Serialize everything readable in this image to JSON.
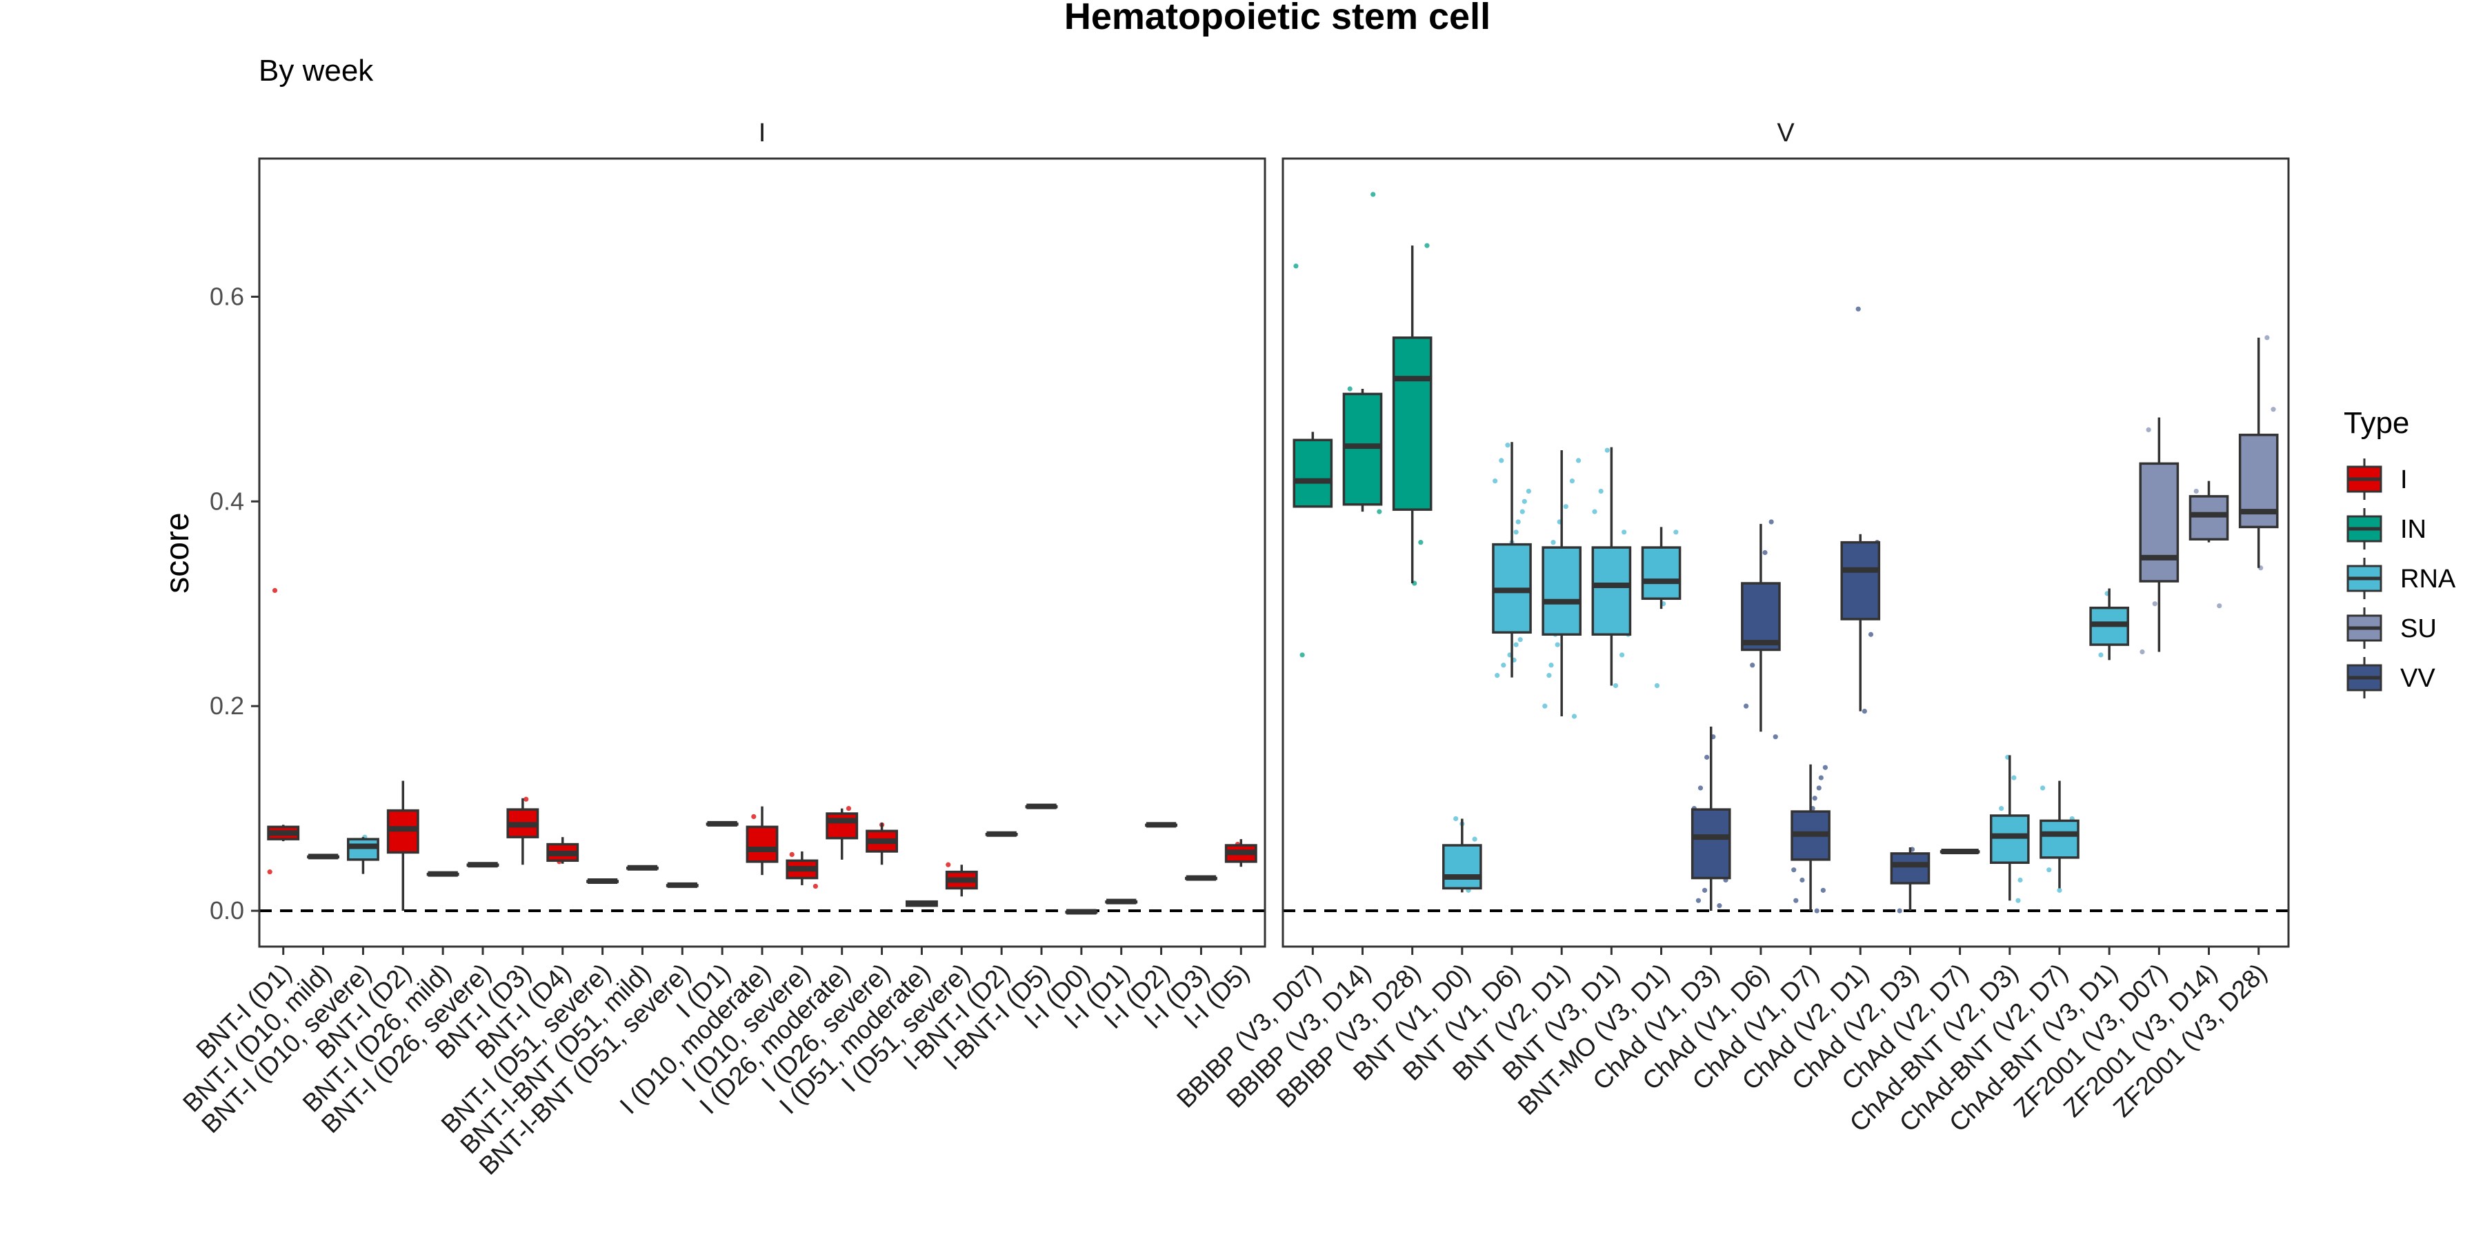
{
  "chart_data": {
    "type": "boxplot",
    "title": "Hematopoietic stem cell",
    "subtitle": "By week",
    "ylabel": "score",
    "xlabel": "",
    "ylim": [
      -0.035,
      0.735
    ],
    "yticks": [
      0.0,
      0.2,
      0.4,
      0.6
    ],
    "reference_line": 0.0,
    "legend": {
      "title": "Type",
      "position": "right",
      "items": [
        {
          "name": "I",
          "color": "#dc0000"
        },
        {
          "name": "IN",
          "color": "#00a087"
        },
        {
          "name": "RNA",
          "color": "#4dbbd5"
        },
        {
          "name": "SU",
          "color": "#8491b4"
        },
        {
          "name": "VV",
          "color": "#3c5488"
        }
      ]
    },
    "panels": [
      {
        "label": "I",
        "groups": [
          {
            "label": "BNT-I (D1)",
            "type": "I",
            "q1": 0.07,
            "median": 0.076,
            "q3": 0.082,
            "lo": 0.068,
            "hi": 0.084,
            "points": [
              0.038,
              0.313
            ]
          },
          {
            "label": "BNT-I (D10, mild)",
            "type": "I",
            "q1": 0.053,
            "median": 0.053,
            "q3": 0.053,
            "lo": 0.053,
            "hi": 0.053,
            "points": []
          },
          {
            "label": "BNT-I (D10, severe)",
            "type": "RNA",
            "q1": 0.05,
            "median": 0.063,
            "q3": 0.07,
            "lo": 0.036,
            "hi": 0.072,
            "points": [
              0.072
            ]
          },
          {
            "label": "BNT-I (D2)",
            "type": "I",
            "q1": 0.057,
            "median": 0.08,
            "q3": 0.098,
            "lo": 0.0,
            "hi": 0.127,
            "points": []
          },
          {
            "label": "BNT-I (D26, mild)",
            "type": "I",
            "q1": 0.036,
            "median": 0.036,
            "q3": 0.036,
            "lo": 0.036,
            "hi": 0.036,
            "points": []
          },
          {
            "label": "BNT-I (D26, severe)",
            "type": "I",
            "q1": 0.045,
            "median": 0.045,
            "q3": 0.045,
            "lo": 0.045,
            "hi": 0.045,
            "points": []
          },
          {
            "label": "BNT-I (D3)",
            "type": "I",
            "q1": 0.072,
            "median": 0.084,
            "q3": 0.099,
            "lo": 0.045,
            "hi": 0.11,
            "points": [
              0.109
            ]
          },
          {
            "label": "BNT-I (D4)",
            "type": "I",
            "q1": 0.049,
            "median": 0.056,
            "q3": 0.065,
            "lo": 0.046,
            "hi": 0.072,
            "points": [
              0.048
            ]
          },
          {
            "label": "BNT-I (D51, severe)",
            "type": "I",
            "q1": 0.029,
            "median": 0.029,
            "q3": 0.029,
            "lo": 0.029,
            "hi": 0.029,
            "points": []
          },
          {
            "label": "BNT-I-BNT (D51, mild)",
            "type": "I",
            "q1": 0.042,
            "median": 0.042,
            "q3": 0.042,
            "lo": 0.042,
            "hi": 0.042,
            "points": []
          },
          {
            "label": "BNT-I-BNT (D51, severe)",
            "type": "I",
            "q1": 0.025,
            "median": 0.025,
            "q3": 0.025,
            "lo": 0.025,
            "hi": 0.025,
            "points": []
          },
          {
            "label": "I (D1)",
            "type": "I",
            "q1": 0.085,
            "median": 0.085,
            "q3": 0.085,
            "lo": 0.085,
            "hi": 0.085,
            "points": []
          },
          {
            "label": "I (D10, moderate)",
            "type": "I",
            "q1": 0.048,
            "median": 0.06,
            "q3": 0.082,
            "lo": 0.035,
            "hi": 0.102,
            "points": [
              0.092
            ]
          },
          {
            "label": "I (D10, severe)",
            "type": "I",
            "q1": 0.032,
            "median": 0.041,
            "q3": 0.049,
            "lo": 0.025,
            "hi": 0.058,
            "points": [
              0.024,
              0.055
            ]
          },
          {
            "label": "I (D26, moderate)",
            "type": "I",
            "q1": 0.071,
            "median": 0.088,
            "q3": 0.095,
            "lo": 0.05,
            "hi": 0.1,
            "points": [
              0.1
            ]
          },
          {
            "label": "I (D26, severe)",
            "type": "I",
            "q1": 0.058,
            "median": 0.068,
            "q3": 0.078,
            "lo": 0.045,
            "hi": 0.086,
            "points": [
              0.084
            ]
          },
          {
            "label": "I (D51, moderate)",
            "type": "I",
            "q1": 0.005,
            "median": 0.007,
            "q3": 0.009,
            "lo": 0.004,
            "hi": 0.01,
            "points": []
          },
          {
            "label": "I (D51, severe)",
            "type": "I",
            "q1": 0.022,
            "median": 0.03,
            "q3": 0.038,
            "lo": 0.014,
            "hi": 0.045,
            "points": [
              0.045
            ]
          },
          {
            "label": "I-BNT-I (D2)",
            "type": "I",
            "q1": 0.075,
            "median": 0.075,
            "q3": 0.075,
            "lo": 0.075,
            "hi": 0.075,
            "points": []
          },
          {
            "label": "I-BNT-I (D5)",
            "type": "I",
            "q1": 0.102,
            "median": 0.102,
            "q3": 0.102,
            "lo": 0.102,
            "hi": 0.102,
            "points": []
          },
          {
            "label": "I-I (D0)",
            "type": "I",
            "q1": -0.001,
            "median": -0.001,
            "q3": -0.001,
            "lo": -0.001,
            "hi": -0.001,
            "points": []
          },
          {
            "label": "I-I (D1)",
            "type": "I",
            "q1": 0.009,
            "median": 0.009,
            "q3": 0.009,
            "lo": 0.009,
            "hi": 0.009,
            "points": []
          },
          {
            "label": "I-I (D2)",
            "type": "I",
            "q1": 0.084,
            "median": 0.084,
            "q3": 0.084,
            "lo": 0.084,
            "hi": 0.084,
            "points": []
          },
          {
            "label": "I-I (D3)",
            "type": "I",
            "q1": 0.032,
            "median": 0.032,
            "q3": 0.032,
            "lo": 0.032,
            "hi": 0.032,
            "points": []
          },
          {
            "label": "I-I (D5)",
            "type": "I",
            "q1": 0.048,
            "median": 0.057,
            "q3": 0.064,
            "lo": 0.043,
            "hi": 0.07,
            "points": [
              0.065
            ]
          }
        ]
      },
      {
        "label": "V",
        "groups": [
          {
            "label": "BBIBP (V3, D07)",
            "type": "IN",
            "q1": 0.395,
            "median": 0.42,
            "q3": 0.46,
            "lo": 0.395,
            "hi": 0.468,
            "points": [
              0.63,
              0.25,
              0.4,
              0.43,
              0.455
            ]
          },
          {
            "label": "BBIBP (V3, D14)",
            "type": "IN",
            "q1": 0.397,
            "median": 0.454,
            "q3": 0.505,
            "lo": 0.39,
            "hi": 0.51,
            "points": [
              0.7,
              0.39,
              0.51,
              0.47
            ]
          },
          {
            "label": "BBIBP (V3, D28)",
            "type": "IN",
            "q1": 0.392,
            "median": 0.52,
            "q3": 0.56,
            "lo": 0.32,
            "hi": 0.65,
            "points": [
              0.32,
              0.36,
              0.65,
              0.55
            ]
          },
          {
            "label": "BNT (V1, D0)",
            "type": "RNA",
            "q1": 0.022,
            "median": 0.033,
            "q3": 0.064,
            "lo": 0.018,
            "hi": 0.09,
            "points": [
              0.09,
              0.085,
              0.02,
              0.07,
              0.04
            ]
          },
          {
            "label": "BNT (V1, D6)",
            "type": "RNA",
            "q1": 0.272,
            "median": 0.313,
            "q3": 0.358,
            "lo": 0.228,
            "hi": 0.458,
            "points": [
              0.23,
              0.24,
              0.25,
              0.26,
              0.28,
              0.3,
              0.32,
              0.34,
              0.36,
              0.38,
              0.4,
              0.42,
              0.44,
              0.455,
              0.245,
              0.265,
              0.29,
              0.31,
              0.33,
              0.35,
              0.37,
              0.39,
              0.41
            ]
          },
          {
            "label": "BNT (V2, D1)",
            "type": "RNA",
            "q1": 0.27,
            "median": 0.302,
            "q3": 0.355,
            "lo": 0.19,
            "hi": 0.45,
            "points": [
              0.19,
              0.2,
              0.24,
              0.26,
              0.28,
              0.3,
              0.32,
              0.34,
              0.36,
              0.38,
              0.395,
              0.42,
              0.44,
              0.23,
              0.27,
              0.31
            ]
          },
          {
            "label": "BNT (V3, D1)",
            "type": "RNA",
            "q1": 0.27,
            "median": 0.318,
            "q3": 0.355,
            "lo": 0.22,
            "hi": 0.453,
            "points": [
              0.22,
              0.25,
              0.27,
              0.29,
              0.31,
              0.33,
              0.35,
              0.37,
              0.39,
              0.41,
              0.45,
              0.3,
              0.34
            ]
          },
          {
            "label": "BNT-MO (V3, D1)",
            "type": "RNA",
            "q1": 0.305,
            "median": 0.322,
            "q3": 0.355,
            "lo": 0.295,
            "hi": 0.375,
            "points": [
              0.22,
              0.3,
              0.33,
              0.37
            ]
          },
          {
            "label": "ChAd (V1, D3)",
            "type": "VV",
            "q1": 0.032,
            "median": 0.072,
            "q3": 0.099,
            "lo": 0.0,
            "hi": 0.18,
            "points": [
              0.01,
              0.02,
              0.04,
              0.06,
              0.08,
              0.1,
              0.12,
              0.15,
              0.17,
              0.005,
              0.03,
              0.05,
              0.09
            ]
          },
          {
            "label": "ChAd (V1, D6)",
            "type": "VV",
            "q1": 0.255,
            "median": 0.262,
            "q3": 0.32,
            "lo": 0.175,
            "hi": 0.378,
            "points": [
              0.17,
              0.2,
              0.24,
              0.28,
              0.35,
              0.38,
              0.3
            ]
          },
          {
            "label": "ChAd (V1, D7)",
            "type": "VV",
            "q1": 0.05,
            "median": 0.075,
            "q3": 0.097,
            "lo": 0.0,
            "hi": 0.143,
            "points": [
              0.0,
              0.02,
              0.04,
              0.06,
              0.08,
              0.1,
              0.12,
              0.14,
              0.01,
              0.03,
              0.07,
              0.11,
              0.13
            ]
          },
          {
            "label": "ChAd (V2, D1)",
            "type": "VV",
            "q1": 0.285,
            "median": 0.333,
            "q3": 0.36,
            "lo": 0.195,
            "hi": 0.368,
            "points": [
              0.588,
              0.195,
              0.27,
              0.36,
              0.3
            ]
          },
          {
            "label": "ChAd (V2, D3)",
            "type": "VV",
            "q1": 0.027,
            "median": 0.045,
            "q3": 0.056,
            "lo": 0.0,
            "hi": 0.062,
            "points": [
              0.0,
              0.03,
              0.06,
              0.05
            ]
          },
          {
            "label": "ChAd (V2, D7)",
            "type": "VV",
            "q1": 0.058,
            "median": 0.058,
            "q3": 0.058,
            "lo": 0.058,
            "hi": 0.058,
            "points": []
          },
          {
            "label": "ChAd-BNT (V2, D3)",
            "type": "RNA",
            "q1": 0.047,
            "median": 0.073,
            "q3": 0.093,
            "lo": 0.01,
            "hi": 0.152,
            "points": [
              0.01,
              0.05,
              0.08,
              0.1,
              0.15,
              0.13,
              0.03
            ]
          },
          {
            "label": "ChAd-BNT (V2, D7)",
            "type": "RNA",
            "q1": 0.052,
            "median": 0.075,
            "q3": 0.088,
            "lo": 0.022,
            "hi": 0.127,
            "points": [
              0.02,
              0.06,
              0.09,
              0.12,
              0.04
            ]
          },
          {
            "label": "ChAd-BNT (V3, D1)",
            "type": "RNA",
            "q1": 0.26,
            "median": 0.28,
            "q3": 0.296,
            "lo": 0.245,
            "hi": 0.315,
            "points": [
              0.25,
              0.31,
              0.27
            ]
          },
          {
            "label": "ZF2001 (V3, D07)",
            "type": "SU",
            "q1": 0.322,
            "median": 0.345,
            "q3": 0.437,
            "lo": 0.253,
            "hi": 0.482,
            "points": [
              0.253,
              0.47,
              0.3,
              0.42
            ]
          },
          {
            "label": "ZF2001 (V3, D14)",
            "type": "SU",
            "q1": 0.363,
            "median": 0.387,
            "q3": 0.405,
            "lo": 0.36,
            "hi": 0.42,
            "points": [
              0.298,
              0.4,
              0.41
            ]
          },
          {
            "label": "ZF2001 (V3, D28)",
            "type": "SU",
            "q1": 0.375,
            "median": 0.39,
            "q3": 0.465,
            "lo": 0.335,
            "hi": 0.56,
            "points": [
              0.335,
              0.56,
              0.49,
              0.38
            ]
          }
        ]
      }
    ]
  }
}
